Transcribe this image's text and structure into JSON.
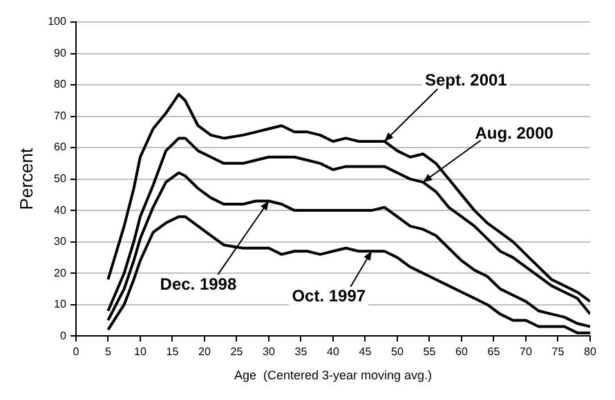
{
  "chart_data": {
    "type": "line",
    "xlabel": "Age  (Centered 3-year moving avg.)",
    "ylabel": "Percent",
    "xlim": [
      0,
      80
    ],
    "xticks": [
      0,
      5,
      10,
      15,
      20,
      25,
      30,
      35,
      40,
      45,
      50,
      55,
      60,
      65,
      70,
      75,
      80
    ],
    "ylim": [
      0,
      100
    ],
    "yticks": [
      0,
      10,
      20,
      30,
      40,
      50,
      60,
      70,
      80,
      90,
      100
    ],
    "grid": "y",
    "legend": false,
    "marker": "none",
    "line_style": "solid",
    "x": [
      5,
      7.5,
      9,
      10,
      12,
      14,
      16,
      17,
      19,
      21,
      23,
      26,
      28,
      30,
      32,
      34,
      36,
      38,
      40,
      42,
      44,
      46,
      48,
      50,
      52,
      54,
      56,
      58,
      60,
      62,
      64,
      66,
      68,
      70,
      72,
      74,
      76,
      78,
      80
    ],
    "series": [
      {
        "color": "#000000",
        "values": [
          18,
          35,
          47,
          57,
          66,
          71,
          77,
          75,
          67,
          64,
          63,
          64,
          65,
          66,
          67,
          65,
          65,
          64,
          62,
          63,
          62,
          62,
          62,
          59,
          57,
          58,
          55,
          50,
          45,
          40,
          36,
          33,
          30,
          26,
          22,
          18,
          16,
          14,
          11
        ]
      },
      {
        "color": "#000000",
        "values": [
          8,
          20,
          30,
          38,
          48,
          59,
          63,
          63,
          59,
          57,
          55,
          55,
          56,
          57,
          57,
          57,
          56,
          55,
          53,
          54,
          54,
          54,
          54,
          52,
          50,
          49,
          46,
          41,
          38,
          35,
          31,
          27,
          25,
          22,
          19,
          16,
          14,
          12,
          7
        ]
      },
      {
        "color": "#000000",
        "values": [
          5,
          15,
          24,
          31,
          41,
          49,
          52,
          51,
          47,
          44,
          42,
          42,
          43,
          43,
          42,
          40,
          40,
          40,
          40,
          40,
          40,
          40,
          41,
          38,
          35,
          34,
          32,
          28,
          24,
          21,
          19,
          15,
          13,
          11,
          8,
          7,
          6,
          4,
          3
        ]
      },
      {
        "color": "#000000",
        "values": [
          2,
          10,
          18,
          24,
          33,
          36,
          38,
          38,
          35,
          32,
          29,
          28,
          28,
          28,
          26,
          27,
          27,
          26,
          27,
          28,
          27,
          27,
          27,
          25,
          22,
          20,
          18,
          16,
          14,
          12,
          10,
          7,
          5,
          5,
          3,
          3,
          3,
          1,
          1
        ]
      }
    ],
    "annotations": [
      {
        "text": "Sept. 2001",
        "x": 48,
        "y": 62
      },
      {
        "text": "Aug. 2000",
        "x": 54,
        "y": 49
      },
      {
        "text": "Dec. 1998",
        "x": 30,
        "y": 43
      },
      {
        "text": "Oct. 1997",
        "x": 46,
        "y": 27
      }
    ]
  }
}
